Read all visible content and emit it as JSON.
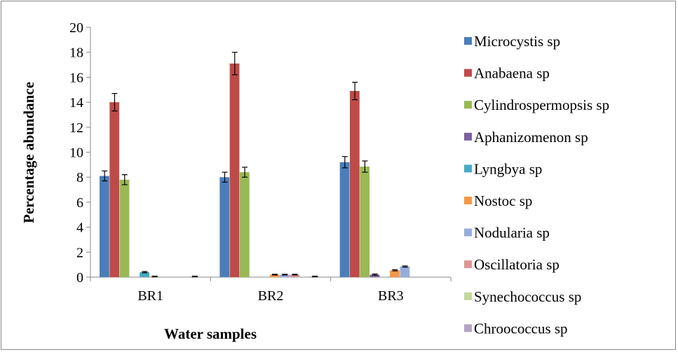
{
  "chart_data": {
    "type": "bar",
    "xlabel": "Water samples",
    "ylabel": "Percentage abundance",
    "ylim": [
      0,
      20
    ],
    "yticks": [
      "0",
      "2",
      "4",
      "6",
      "8",
      "10",
      "12",
      "14",
      "16",
      "18",
      "20"
    ],
    "categories": [
      "BR1",
      "BR2",
      "BR3"
    ],
    "grid": false,
    "legend_position": "right",
    "error_bars": true,
    "series": [
      {
        "name": "Microcystis sp",
        "color": "#4a7ebb",
        "values": [
          8.1,
          8.0,
          9.2
        ],
        "errors": [
          0.4,
          0.4,
          0.45
        ]
      },
      {
        "name": "Anabaena sp",
        "color": "#be4b48",
        "values": [
          14.0,
          17.1,
          14.9
        ],
        "errors": [
          0.7,
          0.9,
          0.7
        ]
      },
      {
        "name": "Cylindrospermopsis sp",
        "color": "#98b954",
        "values": [
          7.8,
          8.4,
          8.85
        ],
        "errors": [
          0.4,
          0.4,
          0.45
        ]
      },
      {
        "name": "Aphanizomenon sp",
        "color": "#7d60a0",
        "values": [
          0.0,
          0.0,
          0.2
        ],
        "errors": [
          0.0,
          0.0,
          0.05
        ]
      },
      {
        "name": "Lyngbya sp",
        "color": "#46aac5",
        "values": [
          0.4,
          0.0,
          0.0
        ],
        "errors": [
          0.05,
          0.0,
          0.0
        ]
      },
      {
        "name": "Nostoc sp",
        "color": "#f79646",
        "values": [
          0.05,
          0.2,
          0.55
        ],
        "errors": [
          0.03,
          0.03,
          0.05
        ]
      },
      {
        "name": "Nodularia sp",
        "color": "#94aedb",
        "values": [
          0.0,
          0.2,
          0.85
        ],
        "errors": [
          0.0,
          0.03,
          0.05
        ]
      },
      {
        "name": "Oscillatoria sp",
        "color": "#dc9694",
        "values": [
          0.0,
          0.2,
          0.0
        ],
        "errors": [
          0.0,
          0.03,
          0.0
        ]
      },
      {
        "name": "Synechococcus sp",
        "color": "#c4d79b",
        "values": [
          0.0,
          0.0,
          0.0
        ],
        "errors": [
          0.0,
          0.0,
          0.0
        ]
      },
      {
        "name": "Chroococcus sp",
        "color": "#b3a2c7",
        "values": [
          0.05,
          0.05,
          0.0
        ],
        "errors": [
          0.03,
          0.03,
          0.0
        ]
      }
    ]
  }
}
